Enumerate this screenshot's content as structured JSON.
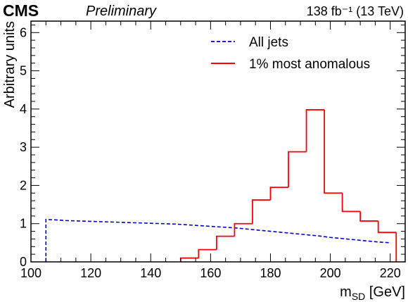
{
  "chart_data": {
    "type": "line",
    "experiment": "CMS",
    "status": "Preliminary",
    "lumi_label": "138 fb⁻¹ (13 TeV)",
    "xlabel_main": "m",
    "xlabel_sub": "SD",
    "xlabel_unit": " [GeV]",
    "ylabel": "Arbitrary units",
    "xlim": [
      100,
      225
    ],
    "ylim": [
      0,
      6.3
    ],
    "x_ticks": [
      "100",
      "120",
      "140",
      "160",
      "180",
      "200",
      "220"
    ],
    "y_ticks": [
      "0",
      "1",
      "2",
      "3",
      "4",
      "5",
      "6"
    ],
    "legend_position": "top-right",
    "series": [
      {
        "name": "All jets",
        "color": "#0000cc",
        "style": "dashed",
        "x": [
          105,
          108,
          112,
          116,
          120,
          124,
          128,
          132,
          136,
          140,
          144,
          148,
          152,
          156,
          160,
          164,
          168,
          172,
          176,
          180,
          184,
          188,
          192,
          196,
          200,
          204,
          208,
          212,
          216,
          220
        ],
        "y": [
          1.11,
          1.1,
          1.08,
          1.07,
          1.06,
          1.05,
          1.04,
          1.03,
          1.02,
          1.01,
          1.0,
          0.99,
          0.97,
          0.95,
          0.93,
          0.91,
          0.89,
          0.86,
          0.83,
          0.8,
          0.77,
          0.74,
          0.71,
          0.68,
          0.64,
          0.61,
          0.58,
          0.55,
          0.52,
          0.5
        ]
      },
      {
        "name": "1% most anomalous",
        "color": "#ff0000",
        "style": "solid",
        "bin_edges": [
          150,
          156,
          162,
          168,
          174,
          180,
          186,
          192,
          198,
          204,
          210,
          216,
          222
        ],
        "values": [
          0.1,
          0.32,
          0.67,
          1.0,
          1.62,
          1.95,
          2.88,
          3.98,
          1.8,
          1.32,
          1.07,
          0.77
        ]
      }
    ]
  }
}
